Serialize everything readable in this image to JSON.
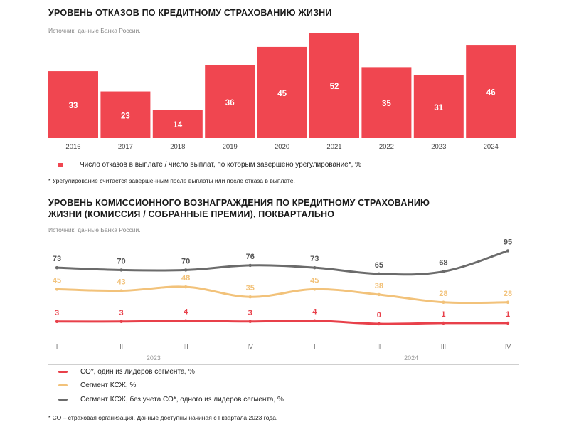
{
  "chart1": {
    "title": "УРОВЕНЬ ОТКАЗОВ ПО КРЕДИТНОМУ СТРАХОВАНИЮ ЖИЗНИ",
    "source": "Источник: данные Банка России.",
    "legend": "Число отказов в выплате / число выплат, по которым завершено урегулирование*, %",
    "note": "* Урегулирование считается завершенным после выплаты или после отказа в выплате.",
    "bar_color": "#f04650"
  },
  "chart2": {
    "title_line1": "УРОВЕНЬ КОМИССИОННОГО ВОЗНАГРАЖДЕНИЯ ПО КРЕДИТНОМУ СТРАХОВАНИЮ",
    "title_line2": "ЖИЗНИ (КОМИССИЯ / СОБРАННЫЕ ПРЕМИИ), ПОКВАРТАЛЬНО",
    "source": "Источник: данные Банка России.",
    "year_labels": [
      "2023",
      "2024"
    ],
    "note": "* СО – страховая организация. Данные доступны начиная с I квартала 2023 года."
  },
  "chart_data": [
    {
      "type": "bar",
      "categories": [
        "2016",
        "2017",
        "2018",
        "2019",
        "2020",
        "2021",
        "2022",
        "2023",
        "2024"
      ],
      "values": [
        33,
        23,
        14,
        36,
        45,
        52,
        35,
        31,
        46
      ],
      "title": "УРОВЕНЬ ОТКАЗОВ ПО КРЕДИТНОМУ СТРАХОВАНИЮ ЖИЗНИ",
      "ylim": [
        0,
        52
      ],
      "grid": false
    },
    {
      "type": "line",
      "categories": [
        "I",
        "II",
        "III",
        "IV",
        "I",
        "II",
        "III",
        "IV"
      ],
      "series": [
        {
          "name": "СО*, один из лидеров сегмента, %",
          "values": [
            3,
            3,
            4,
            3,
            4,
            0,
            1,
            1
          ],
          "color": "#e8404a"
        },
        {
          "name": "Сегмент КСЖ, %",
          "values": [
            45,
            43,
            48,
            35,
            45,
            38,
            28,
            28
          ],
          "color": "#f2c27a"
        },
        {
          "name": "Сегмент КСЖ, без учета СО*, одного из лидеров сегмента, %",
          "values": [
            73,
            70,
            70,
            76,
            73,
            65,
            68,
            95
          ],
          "color": "#6b6b6b"
        }
      ],
      "title": "УРОВЕНЬ КОМИССИОННОГО ВОЗНАГРАЖДЕНИЯ ПО КРЕДИТНОМУ СТРАХОВАНИЮ ЖИЗНИ (КОМИССИЯ / СОБРАННЫЕ ПРЕМИИ), ПОКВАРТАЛЬНО",
      "ylim": [
        0,
        95
      ],
      "grid": false
    }
  ]
}
